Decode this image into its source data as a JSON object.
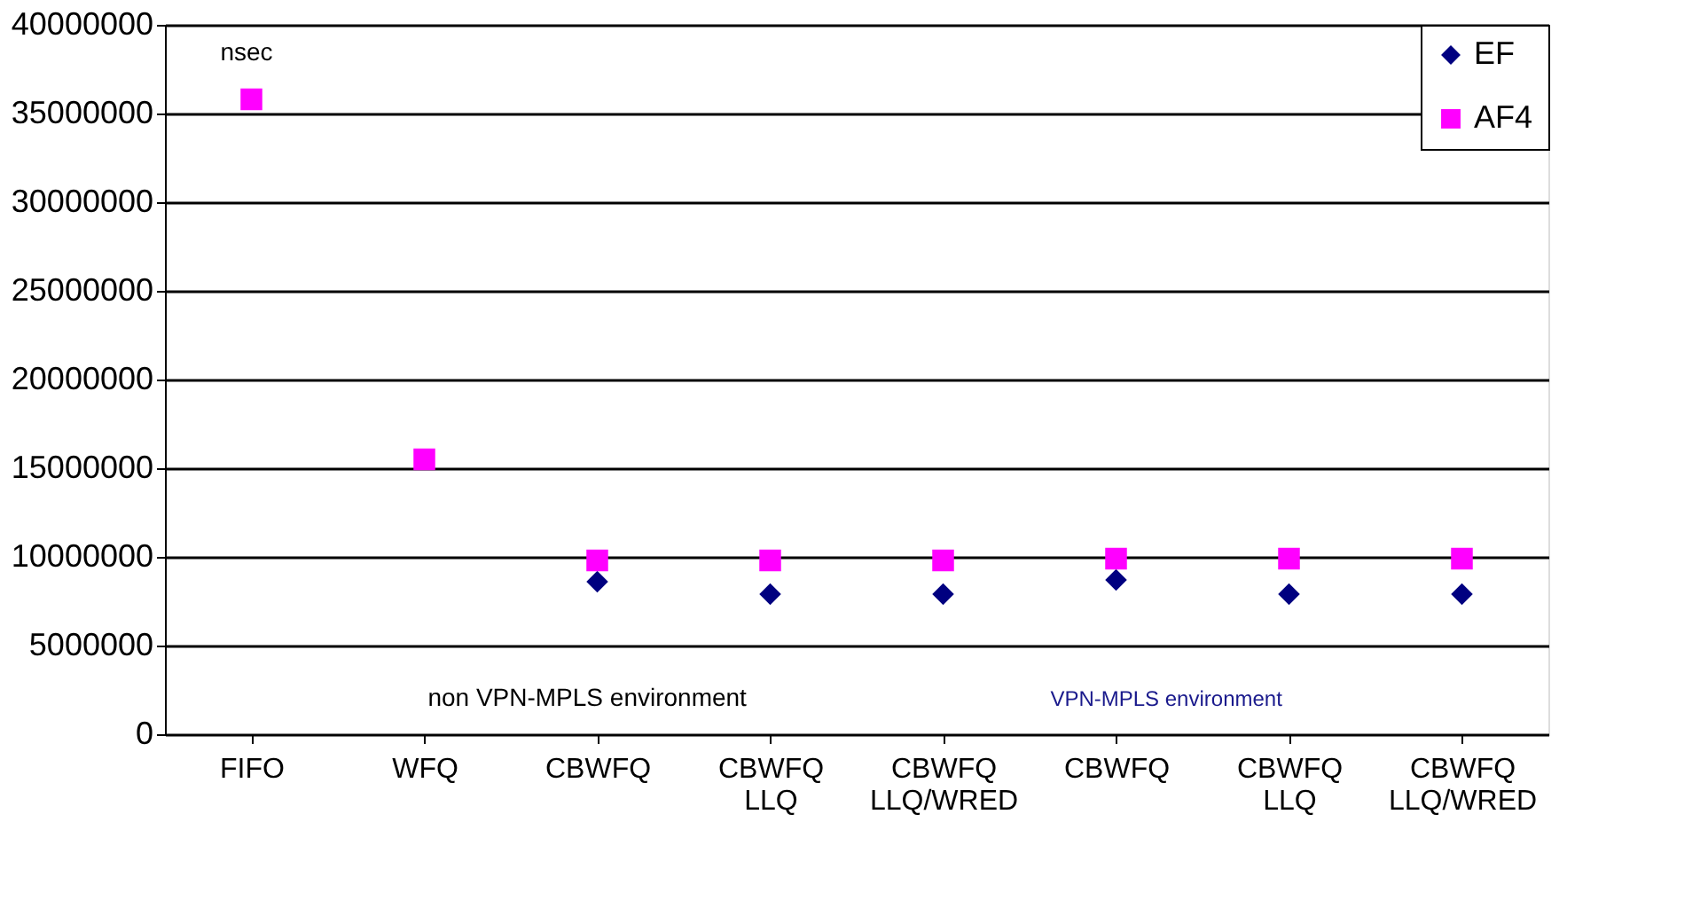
{
  "chart_data": {
    "type": "scatter",
    "categories": [
      "FIFO",
      "WFQ",
      "CBWFQ",
      "CBWFQ LLQ",
      "CBWFQ LLQ/WRED",
      "CBWFQ",
      "CBWFQ LLQ",
      "CBWFQ LLQ/WRED"
    ],
    "series": [
      {
        "name": "EF",
        "color": "#000080",
        "marker": "diamond",
        "values": [
          null,
          null,
          8600000,
          7900000,
          7900000,
          8700000,
          7900000,
          7900000
        ]
      },
      {
        "name": "AF4",
        "color": "#ff00ff",
        "marker": "square",
        "values": [
          35800000,
          15500000,
          9800000,
          9800000,
          9800000,
          9900000,
          9900000,
          9900000
        ]
      }
    ],
    "ylim": [
      0,
      40000000
    ],
    "yticks": [
      0,
      5000000,
      10000000,
      15000000,
      20000000,
      25000000,
      30000000,
      35000000,
      40000000
    ],
    "grid": "y",
    "legend": "top right",
    "annotations": [
      "nsec",
      "non VPN-MPLS environment",
      "VPN-MPLS environment"
    ]
  }
}
